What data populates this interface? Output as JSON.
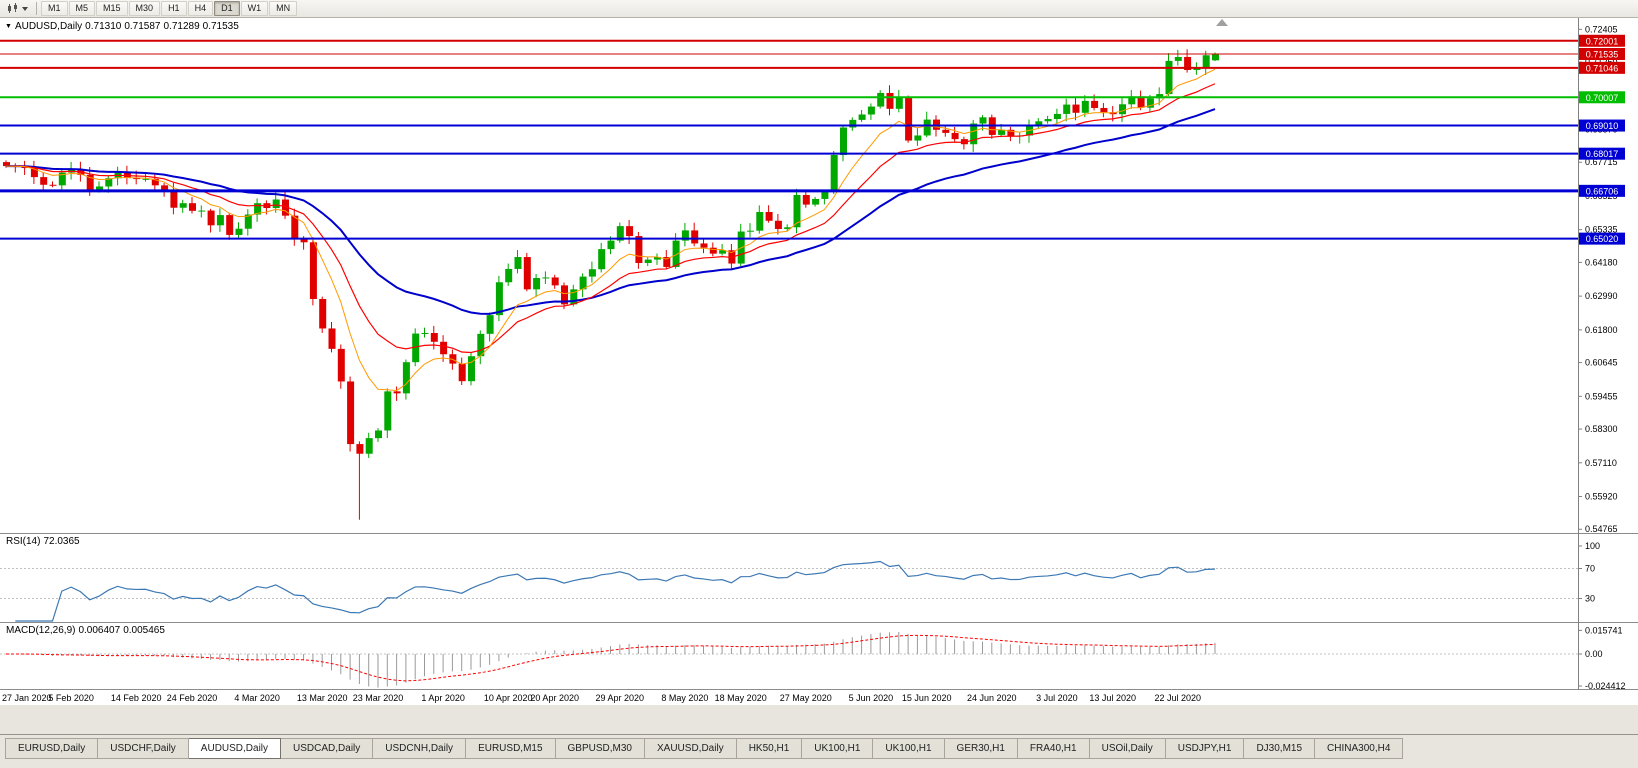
{
  "toolbar": {
    "timeframes": [
      "M1",
      "M5",
      "M15",
      "M30",
      "H1",
      "H4",
      "D1",
      "W1",
      "MN"
    ],
    "active_timeframe": "D1"
  },
  "chart_title": {
    "collapse_icon": "▼",
    "symbol": "AUDUSD,Daily",
    "open": "0.71310",
    "high": "0.71587",
    "low": "0.71289",
    "close": "0.71535"
  },
  "main_chart": {
    "y_ticks": [
      "0.72405",
      "0.71250",
      "0.70060",
      "0.68870",
      "0.67715",
      "0.66525",
      "0.65335",
      "0.64180",
      "0.62990",
      "0.61800",
      "0.60645",
      "0.59455",
      "0.58300",
      "0.57110",
      "0.55920",
      "0.54765"
    ],
    "price_lines": [
      {
        "label": "0.72001",
        "price": 0.72001,
        "color": "#d20000",
        "width": 2,
        "role": "resistance"
      },
      {
        "label": "0.71535",
        "price": 0.71535,
        "color": "#d20000",
        "width": 1,
        "role": "current-price"
      },
      {
        "label": "0.71046",
        "price": 0.71046,
        "color": "#d20000",
        "width": 2,
        "role": "resistance"
      },
      {
        "label": "0.70007",
        "price": 0.70007,
        "color": "#00bd00",
        "width": 2,
        "role": "support"
      },
      {
        "label": "0.69010",
        "price": 0.6901,
        "color": "#0000d4",
        "width": 2,
        "role": "support"
      },
      {
        "label": "0.68017",
        "price": 0.68017,
        "color": "#0000d4",
        "width": 2,
        "role": "support"
      },
      {
        "label": "0.66706",
        "price": 0.66706,
        "color": "#0000d4",
        "width": 3,
        "role": "support"
      },
      {
        "label": "0.65020",
        "price": 0.6502,
        "color": "#0000d4",
        "width": 2,
        "role": "support"
      }
    ],
    "colors": {
      "bull": "#00a800",
      "bear": "#e00000",
      "macd_hist": "#9a9a9a",
      "macd_signal": "#ff0000"
    }
  },
  "chart_data": {
    "type": "candlestick",
    "symbol": "AUDUSD",
    "timeframe": "Daily",
    "closes": [
      0.6758,
      0.6756,
      0.6751,
      0.6719,
      0.6692,
      0.669,
      0.6735,
      0.6746,
      0.6727,
      0.6672,
      0.6686,
      0.6715,
      0.6738,
      0.6717,
      0.6712,
      0.6713,
      0.669,
      0.6675,
      0.6611,
      0.6627,
      0.66,
      0.6601,
      0.6549,
      0.6585,
      0.6515,
      0.6537,
      0.6587,
      0.6627,
      0.661,
      0.664,
      0.6583,
      0.6502,
      0.6489,
      0.6289,
      0.6185,
      0.6113,
      0.5998,
      0.5777,
      0.5743,
      0.5798,
      0.5825,
      0.5963,
      0.5956,
      0.6066,
      0.6167,
      0.6169,
      0.6138,
      0.6094,
      0.6061,
      0.5999,
      0.6087,
      0.6166,
      0.6232,
      0.6348,
      0.6395,
      0.6437,
      0.6323,
      0.6363,
      0.6365,
      0.6337,
      0.627,
      0.6323,
      0.6368,
      0.6394,
      0.6465,
      0.6495,
      0.6546,
      0.6511,
      0.6416,
      0.6428,
      0.6437,
      0.6402,
      0.6495,
      0.6531,
      0.6485,
      0.647,
      0.6449,
      0.6461,
      0.6414,
      0.6527,
      0.653,
      0.6596,
      0.6565,
      0.6536,
      0.6542,
      0.6656,
      0.6622,
      0.6642,
      0.6667,
      0.6797,
      0.6894,
      0.6921,
      0.694,
      0.6968,
      0.7016,
      0.696,
      0.6999,
      0.6848,
      0.6866,
      0.6922,
      0.6886,
      0.6875,
      0.6853,
      0.6835,
      0.6908,
      0.693,
      0.6868,
      0.6886,
      0.6864,
      0.6866,
      0.6903,
      0.6916,
      0.6924,
      0.6942,
      0.6975,
      0.6946,
      0.6988,
      0.6963,
      0.6948,
      0.6941,
      0.6976,
      0.7004,
      0.6964,
      0.6997,
      0.7012,
      0.7129,
      0.7143,
      0.7097,
      0.7103,
      0.7149,
      0.7154
    ],
    "crash_low": {
      "index": 38,
      "low": 0.551
    },
    "x_labels": [
      {
        "label": "27 Jan 2020",
        "index": 0
      },
      {
        "label": "5 Feb 2020",
        "index": 7
      },
      {
        "label": "14 Feb 2020",
        "index": 14
      },
      {
        "label": "24 Feb 2020",
        "index": 20
      },
      {
        "label": "4 Mar 2020",
        "index": 27
      },
      {
        "label": "13 Mar 2020",
        "index": 34
      },
      {
        "label": "23 Mar 2020",
        "index": 40
      },
      {
        "label": "1 Apr 2020",
        "index": 47
      },
      {
        "label": "10 Apr 2020",
        "index": 54
      },
      {
        "label": "20 Apr 2020",
        "index": 59
      },
      {
        "label": "29 Apr 2020",
        "index": 66
      },
      {
        "label": "8 May 2020",
        "index": 73
      },
      {
        "label": "18 May 2020",
        "index": 79
      },
      {
        "label": "27 May 2020",
        "index": 86
      },
      {
        "label": "5 Jun 2020",
        "index": 93
      },
      {
        "label": "15 Jun 2020",
        "index": 99
      },
      {
        "label": "24 Jun 2020",
        "index": 106
      },
      {
        "label": "3 Jul 2020",
        "index": 113
      },
      {
        "label": "13 Jul 2020",
        "index": 119
      },
      {
        "label": "22 Jul 2020",
        "index": 126
      }
    ],
    "indicators": {
      "ma_fast": {
        "period": 8,
        "color": "#ff9900"
      },
      "ma_mid": {
        "period": 16,
        "color": "#ff0000"
      },
      "ma_slow": {
        "period": 34,
        "color": "#0000cc"
      }
    }
  },
  "rsi": {
    "name": "RSI(14)",
    "value": "72.0365",
    "period": 14,
    "color": "#3c78b4",
    "ticks": [
      "100",
      "70",
      "30"
    ]
  },
  "macd": {
    "name": "MACD(12,26,9)",
    "value_main": "0.006407",
    "value_signal": "0.005465",
    "fast": 12,
    "slow": 26,
    "signal": 9,
    "ticks": [
      "0.015741",
      "0.00",
      "-0.024412"
    ]
  },
  "tabs": [
    {
      "label": "EURUSD,Daily",
      "active": false
    },
    {
      "label": "USDCHF,Daily",
      "active": false
    },
    {
      "label": "AUDUSD,Daily",
      "active": true
    },
    {
      "label": "USDCAD,Daily",
      "active": false
    },
    {
      "label": "USDCNH,Daily",
      "active": false
    },
    {
      "label": "EURUSD,M15",
      "active": false
    },
    {
      "label": "GBPUSD,M30",
      "active": false
    },
    {
      "label": "XAUUSD,Daily",
      "active": false
    },
    {
      "label": "HK50,H1",
      "active": false
    },
    {
      "label": "UK100,H1",
      "active": false
    },
    {
      "label": "UK100,H1",
      "active": false
    },
    {
      "label": "GER30,H1",
      "active": false
    },
    {
      "label": "FRA40,H1",
      "active": false
    },
    {
      "label": "USOil,Daily",
      "active": false
    },
    {
      "label": "USDJPY,H1",
      "active": false
    },
    {
      "label": "DJ30,M15",
      "active": false
    },
    {
      "label": "CHINA300,H4",
      "active": false
    }
  ]
}
